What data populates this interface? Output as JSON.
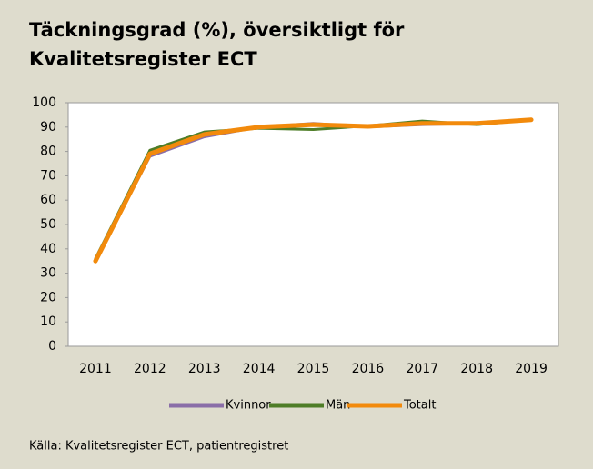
{
  "chart_data": {
    "type": "line",
    "title": [
      "Täckningsgrad (%), översiktligt för",
      "Kvalitetsregister ECT"
    ],
    "categories": [
      "2011",
      "2012",
      "2013",
      "2014",
      "2015",
      "2016",
      "2017",
      "2018",
      "2019"
    ],
    "series": [
      {
        "name": "Kvinnor",
        "color": "#8a6ea8",
        "values": [
          35,
          78,
          86,
          90,
          91.5,
          90,
          91,
          91.5,
          93
        ]
      },
      {
        "name": "Män",
        "color": "#4e7d27",
        "values": [
          36,
          80.5,
          88,
          89.5,
          89,
          90.5,
          92.5,
          91,
          93
        ]
      },
      {
        "name": "Totalt",
        "color": "#f28a0c",
        "values": [
          35,
          79,
          87,
          90,
          91,
          90.3,
          91.5,
          91.5,
          93
        ]
      }
    ],
    "ylim": [
      0,
      100
    ],
    "yticks": [
      0,
      10,
      20,
      30,
      40,
      50,
      60,
      70,
      80,
      90,
      100
    ],
    "grid": false,
    "legend": "bottom",
    "source": "Källa: Kvalitetsregister ECT, patientregistret"
  }
}
